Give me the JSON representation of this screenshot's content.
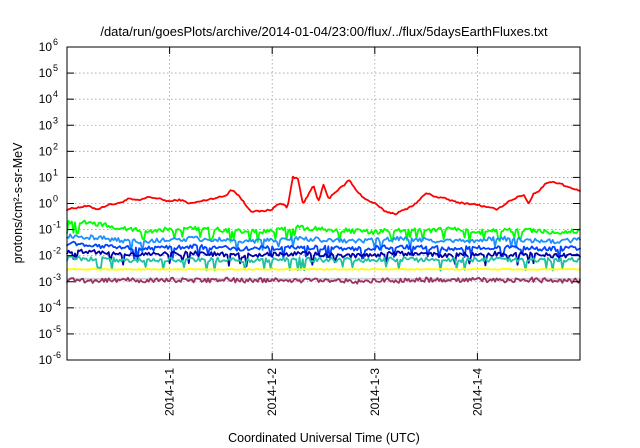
{
  "chart_data": {
    "type": "line",
    "title": "/data/run/goesPlots/archive/2014-01-04/23:00/flux/../flux/5daysEarthFluxes.txt",
    "xlabel": "Coordinated Universal Time (UTC)",
    "ylabel": "protons/cm²-s-sr-MeV",
    "y_scale": "log",
    "ylim": [
      1e-06,
      1000000.0
    ],
    "y_ticks": [
      {
        "base": "10",
        "exp": "-6"
      },
      {
        "base": "10",
        "exp": "-5"
      },
      {
        "base": "10",
        "exp": "-4"
      },
      {
        "base": "10",
        "exp": "-3"
      },
      {
        "base": "10",
        "exp": "-2"
      },
      {
        "base": "10",
        "exp": "-1"
      },
      {
        "base": "10",
        "exp": "0"
      },
      {
        "base": "10",
        "exp": "1"
      },
      {
        "base": "10",
        "exp": "2"
      },
      {
        "base": "10",
        "exp": "3"
      },
      {
        "base": "10",
        "exp": "4"
      },
      {
        "base": "10",
        "exp": "5"
      },
      {
        "base": "10",
        "exp": "6"
      }
    ],
    "xlim": [
      "2013-12-31T00:00",
      "2014-01-05T00:00"
    ],
    "x_ticks": [
      "2014-1-1",
      "2014-1-2",
      "2014-1-3",
      "2014-1-4"
    ],
    "grid": true,
    "legend": "none",
    "series": [
      {
        "color": "#ff0000",
        "x": [
          0.0,
          0.1,
          0.2,
          0.3,
          0.4,
          0.5,
          0.6,
          0.7,
          0.8,
          0.9,
          1.0,
          1.1,
          1.2,
          1.3,
          1.4,
          1.5,
          1.55,
          1.6,
          1.65,
          1.7,
          1.75,
          1.8,
          1.9,
          2.0,
          2.05,
          2.1,
          2.15,
          2.2,
          2.25,
          2.3,
          2.35,
          2.4,
          2.45,
          2.5,
          2.55,
          2.6,
          2.65,
          2.7,
          2.75,
          2.8,
          2.9,
          3.0,
          3.1,
          3.2,
          3.3,
          3.4,
          3.5,
          3.6,
          3.7,
          3.8,
          3.9,
          4.0,
          4.1,
          4.2,
          4.3,
          4.4,
          4.45,
          4.5,
          4.55,
          4.6,
          4.65,
          4.7,
          4.8,
          4.9,
          5.0
        ],
        "y": [
          0.6,
          0.7,
          0.8,
          0.6,
          0.9,
          1.0,
          1.5,
          1.3,
          1.8,
          1.5,
          1.2,
          1.4,
          1.0,
          1.2,
          1.5,
          1.8,
          2.0,
          3.5,
          2.5,
          1.5,
          0.8,
          0.5,
          0.5,
          0.6,
          0.9,
          1.0,
          0.7,
          10,
          9,
          1.0,
          2.0,
          5,
          1.2,
          5,
          1.5,
          2.5,
          3.5,
          5,
          8,
          4,
          1.5,
          1.0,
          0.5,
          0.4,
          0.6,
          1.0,
          2.5,
          1.8,
          1.5,
          1.1,
          1.0,
          0.9,
          0.7,
          0.6,
          1.2,
          1.8,
          2.2,
          1.0,
          2.5,
          3,
          5,
          7,
          6,
          4,
          3
        ]
      },
      {
        "color": "#00ff00",
        "x": [
          0.0,
          0.25,
          0.5,
          0.75,
          1.0,
          1.25,
          1.5,
          1.75,
          2.0,
          2.25,
          2.5,
          2.75,
          3.0,
          3.25,
          3.5,
          3.75,
          4.0,
          4.25,
          4.5,
          4.75,
          5.0
        ],
        "y": [
          0.2,
          0.18,
          0.12,
          0.09,
          0.1,
          0.11,
          0.1,
          0.08,
          0.09,
          0.12,
          0.1,
          0.09,
          0.08,
          0.1,
          0.09,
          0.11,
          0.08,
          0.1,
          0.09,
          0.08,
          0.09
        ]
      },
      {
        "color": "#1e90ff",
        "x": [
          0.0,
          0.25,
          0.5,
          0.75,
          1.0,
          1.25,
          1.5,
          1.75,
          2.0,
          2.25,
          2.5,
          2.75,
          3.0,
          3.25,
          3.5,
          3.75,
          4.0,
          4.25,
          4.5,
          4.75,
          5.0
        ],
        "y": [
          0.06,
          0.05,
          0.04,
          0.035,
          0.04,
          0.045,
          0.04,
          0.035,
          0.04,
          0.045,
          0.04,
          0.035,
          0.04,
          0.045,
          0.04,
          0.035,
          0.04,
          0.045,
          0.04,
          0.035,
          0.04
        ]
      },
      {
        "color": "#0044ff",
        "x": [
          0.0,
          0.25,
          0.5,
          0.75,
          1.0,
          1.25,
          1.5,
          1.75,
          2.0,
          2.25,
          2.5,
          2.75,
          3.0,
          3.25,
          3.5,
          3.75,
          4.0,
          4.25,
          4.5,
          4.75,
          5.0
        ],
        "y": [
          0.03,
          0.025,
          0.02,
          0.018,
          0.02,
          0.022,
          0.02,
          0.018,
          0.02,
          0.022,
          0.02,
          0.018,
          0.02,
          0.022,
          0.02,
          0.018,
          0.02,
          0.022,
          0.02,
          0.018,
          0.02
        ]
      },
      {
        "color": "#0000aa",
        "x": [
          0.0,
          0.25,
          0.5,
          0.75,
          1.0,
          1.25,
          1.5,
          1.75,
          2.0,
          2.25,
          2.5,
          2.75,
          3.0,
          3.25,
          3.5,
          3.75,
          4.0,
          4.25,
          4.5,
          4.75,
          5.0
        ],
        "y": [
          0.015,
          0.014,
          0.012,
          0.011,
          0.012,
          0.012,
          0.011,
          0.01,
          0.011,
          0.012,
          0.011,
          0.01,
          0.011,
          0.012,
          0.011,
          0.01,
          0.011,
          0.012,
          0.011,
          0.01,
          0.011
        ]
      },
      {
        "color": "#20c0a0",
        "x": [
          0.0,
          0.25,
          0.5,
          0.75,
          1.0,
          1.25,
          1.5,
          1.75,
          2.0,
          2.25,
          2.5,
          2.75,
          3.0,
          3.25,
          3.5,
          3.75,
          4.0,
          4.25,
          4.5,
          4.75,
          5.0
        ],
        "y": [
          0.008,
          0.0075,
          0.007,
          0.0068,
          0.007,
          0.0072,
          0.007,
          0.0068,
          0.007,
          0.0072,
          0.007,
          0.0068,
          0.007,
          0.0072,
          0.007,
          0.0068,
          0.007,
          0.0072,
          0.007,
          0.0068,
          0.007
        ]
      },
      {
        "color": "#ffff00",
        "x": [
          0.0,
          0.25,
          0.5,
          0.75,
          1.0,
          1.25,
          1.5,
          1.75,
          2.0,
          2.25,
          2.5,
          2.75,
          3.0,
          3.25,
          3.5,
          3.75,
          4.0,
          4.25,
          4.5,
          4.75,
          5.0
        ],
        "y": [
          0.003,
          0.003,
          0.003,
          0.003,
          0.003,
          0.003,
          0.003,
          0.003,
          0.003,
          0.003,
          0.003,
          0.003,
          0.003,
          0.003,
          0.003,
          0.003,
          0.003,
          0.003,
          0.003,
          0.003,
          0.003
        ]
      },
      {
        "color": "#d0d0d0",
        "x": [
          0.0,
          1.0,
          2.0,
          3.0,
          4.0,
          5.0
        ],
        "y": [
          0.0013,
          0.0013,
          0.0013,
          0.0013,
          0.0013,
          0.0013
        ]
      },
      {
        "color": "#993366",
        "x": [
          0.0,
          0.25,
          0.5,
          0.75,
          1.0,
          1.25,
          1.5,
          1.75,
          2.0,
          2.25,
          2.5,
          2.75,
          2.9,
          3.0,
          3.1,
          3.25,
          3.5,
          3.75,
          4.0,
          4.25,
          4.5,
          4.75,
          5.0
        ],
        "y": [
          0.0012,
          0.0011,
          0.0012,
          0.0011,
          0.0012,
          0.0011,
          0.0012,
          0.0011,
          0.0012,
          0.0011,
          0.0012,
          0.0011,
          0.0009,
          0.0011,
          0.0012,
          0.0011,
          0.0012,
          0.0011,
          0.0012,
          0.0011,
          0.0012,
          0.0011,
          0.0011
        ]
      }
    ]
  }
}
